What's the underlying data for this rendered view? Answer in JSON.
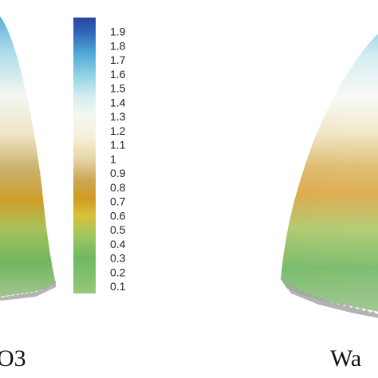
{
  "chart_data": {
    "type": "heatmap",
    "title": "",
    "panels": [
      {
        "label": "O3"
      },
      {
        "label": "Wa"
      }
    ],
    "colorbar": {
      "ticks": [
        "1.9",
        "1.8",
        "1.7",
        "1.6",
        "1.5",
        "1.4",
        "1.3",
        "1.2",
        "1.1",
        "1",
        "0.9",
        "0.8",
        "0.7",
        "0.6",
        "0.5",
        "0.4",
        "0.3",
        "0.2",
        "0.1"
      ],
      "range": [
        0.05,
        2.0
      ],
      "colormap": [
        {
          "value": 0.05,
          "color": "#93c97a"
        },
        {
          "value": 0.3,
          "color": "#6fb860"
        },
        {
          "value": 0.45,
          "color": "#9cc65f"
        },
        {
          "value": 0.6,
          "color": "#d8c138"
        },
        {
          "value": 0.72,
          "color": "#d09c22"
        },
        {
          "value": 0.85,
          "color": "#c9a754"
        },
        {
          "value": 1.0,
          "color": "#e6d6a6"
        },
        {
          "value": 1.15,
          "color": "#f6efd8"
        },
        {
          "value": 1.3,
          "color": "#f4f8f2"
        },
        {
          "value": 1.45,
          "color": "#d3ecee"
        },
        {
          "value": 1.6,
          "color": "#8dd0e3"
        },
        {
          "value": 1.75,
          "color": "#4fa8d6"
        },
        {
          "value": 1.9,
          "color": "#3063b9"
        },
        {
          "value": 2.0,
          "color": "#2a46a3"
        }
      ]
    }
  }
}
